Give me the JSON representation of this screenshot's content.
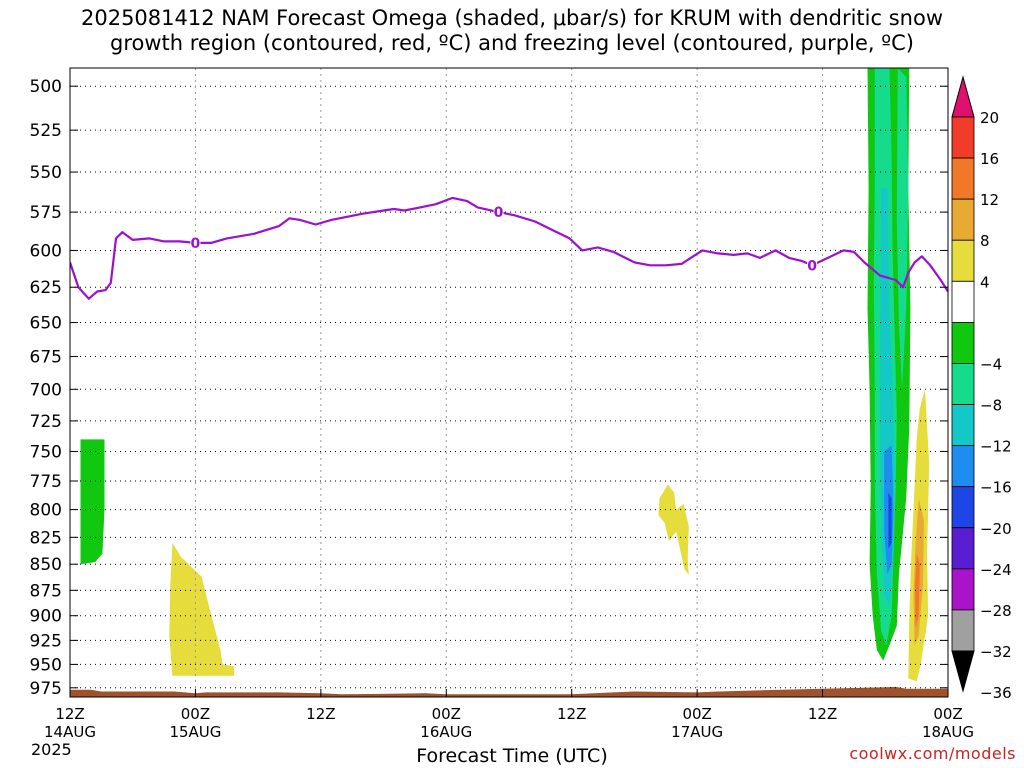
{
  "title": {
    "line1": "2025081412 NAM Forecast Omega (shaded, μbar/s) for KRUM with dendritic snow",
    "line2": "growth region (contoured, red, ºC) and freezing level (contoured, purple, ºC)"
  },
  "watermark": "coolwx.com/models",
  "chart_data": {
    "type": "heatmap",
    "title": "2025081412 NAM Forecast Omega (shaded, μbar/s) for KRUM with dendritic snow growth region (contoured, red, ºC) and freezing level (contoured, purple, ºC)",
    "xlabel": "Forecast Time (UTC)",
    "ylabel": "",
    "x_ticks": [
      {
        "h": 0,
        "line1": "12Z",
        "line2": "14AUG",
        "line3": "2025"
      },
      {
        "h": 12,
        "line1": "00Z",
        "line2": "15AUG"
      },
      {
        "h": 24,
        "line1": "12Z"
      },
      {
        "h": 36,
        "line1": "00Z",
        "line2": "16AUG"
      },
      {
        "h": 48,
        "line1": "12Z"
      },
      {
        "h": 60,
        "line1": "00Z",
        "line2": "17AUG"
      },
      {
        "h": 72,
        "line1": "12Z"
      },
      {
        "h": 84,
        "line1": "00Z",
        "line2": "18AUG"
      }
    ],
    "x_range_hours": [
      0,
      84
    ],
    "y_ticks": [
      500,
      525,
      550,
      575,
      600,
      625,
      650,
      675,
      700,
      725,
      750,
      775,
      800,
      825,
      850,
      875,
      900,
      925,
      950,
      975
    ],
    "y_range_hpa": [
      490,
      985
    ],
    "y_scale": "log-pressure",
    "grid": "dotted",
    "colorbar": {
      "labels": [
        "20",
        "16",
        "12",
        "8",
        "4",
        "−4",
        "−8",
        "−12",
        "−16",
        "−20",
        "−24",
        "−28",
        "−32",
        "−36"
      ],
      "bins": [
        {
          "from": 20,
          "to": 24,
          "color": "#e0106e"
        },
        {
          "from": 16,
          "to": 20,
          "color": "#f03c28"
        },
        {
          "from": 12,
          "to": 16,
          "color": "#f07828"
        },
        {
          "from": 8,
          "to": 12,
          "color": "#e8aa32"
        },
        {
          "from": 4,
          "to": 8,
          "color": "#e6dc3c"
        },
        {
          "from": -4,
          "to": 4,
          "color": "#ffffff"
        },
        {
          "from": -8,
          "to": -4,
          "color": "#10c810"
        },
        {
          "from": -12,
          "to": -8,
          "color": "#14dc8c"
        },
        {
          "from": -16,
          "to": -12,
          "color": "#14c8c8"
        },
        {
          "from": -20,
          "to": -16,
          "color": "#1e8cf0"
        },
        {
          "from": -24,
          "to": -20,
          "color": "#1e46e6"
        },
        {
          "from": -28,
          "to": -24,
          "color": "#5a1ed2"
        },
        {
          "from": -32,
          "to": -28,
          "color": "#aa14c8"
        },
        {
          "from": -36,
          "to": -32,
          "color": "#a0a0a0"
        },
        {
          "from": -40,
          "to": -36,
          "color": "#000000"
        }
      ]
    },
    "freezing_level": {
      "color": "#9b10d2",
      "label": "0",
      "label_at_hours": [
        12,
        41,
        71
      ],
      "points": [
        [
          0,
          608
        ],
        [
          0.8,
          625
        ],
        [
          1.8,
          633
        ],
        [
          2.6,
          628
        ],
        [
          3.4,
          627
        ],
        [
          3.9,
          622
        ],
        [
          4.4,
          592
        ],
        [
          5.0,
          588
        ],
        [
          6,
          593
        ],
        [
          7.6,
          592
        ],
        [
          9,
          594
        ],
        [
          10.5,
          594
        ],
        [
          12,
          595
        ],
        [
          13.5,
          595
        ],
        [
          15,
          592
        ],
        [
          17.6,
          589
        ],
        [
          20,
          584
        ],
        [
          21,
          579
        ],
        [
          22,
          580
        ],
        [
          23.5,
          583
        ],
        [
          25,
          580
        ],
        [
          26.5,
          578
        ],
        [
          28,
          576
        ],
        [
          30,
          574
        ],
        [
          31,
          573
        ],
        [
          32,
          574
        ],
        [
          33.5,
          572
        ],
        [
          35,
          570
        ],
        [
          36.6,
          566
        ],
        [
          38,
          568
        ],
        [
          39,
          572
        ],
        [
          41,
          575
        ],
        [
          42.5,
          577
        ],
        [
          44.5,
          581
        ],
        [
          46,
          586
        ],
        [
          47.8,
          592
        ],
        [
          49,
          600
        ],
        [
          50.5,
          598
        ],
        [
          52,
          601
        ],
        [
          54,
          608
        ],
        [
          55.5,
          610
        ],
        [
          57,
          610
        ],
        [
          58.5,
          609
        ],
        [
          60.5,
          600
        ],
        [
          62,
          602
        ],
        [
          63.5,
          603
        ],
        [
          64.8,
          602
        ],
        [
          66,
          605
        ],
        [
          67.5,
          600
        ],
        [
          68.8,
          605
        ],
        [
          70,
          607
        ],
        [
          71,
          610
        ],
        [
          72.5,
          605
        ],
        [
          74,
          600
        ],
        [
          75,
          601
        ],
        [
          76,
          608
        ],
        [
          77.5,
          617
        ],
        [
          79,
          620
        ],
        [
          79.7,
          625
        ],
        [
          80.2,
          615
        ],
        [
          80.8,
          608
        ],
        [
          81.5,
          604
        ],
        [
          82.3,
          610
        ],
        [
          83.3,
          620
        ],
        [
          84,
          628
        ]
      ]
    },
    "shaded_regions": [
      {
        "name": "early green (-4 to -8)",
        "value": -6,
        "hours": [
          1.0,
          3.3
        ],
        "pressure_hpa": [
          740,
          850
        ]
      },
      {
        "name": "yellow 15AUG (4 to 8)",
        "value": 6,
        "hours": [
          9.7,
          15.7
        ],
        "pressure_hpa": [
          828,
          962
        ]
      },
      {
        "name": "yellow 17AUG (4 to 8)",
        "value": 6,
        "hours": [
          56.3,
          59.3
        ],
        "pressure_hpa": [
          775,
          860
        ]
      },
      {
        "name": "strong ascent 17-18AUG",
        "min_value": -24,
        "hours": [
          76.4,
          80.4
        ],
        "pressure_hpa": [
          490,
          945
        ]
      },
      {
        "name": "descent 18AUG",
        "max_value": 16,
        "hours": [
          80.2,
          82.2
        ],
        "pressure_hpa": [
          700,
          968
        ]
      }
    ],
    "terrain": {
      "color": "#a0522d",
      "top_hpa_approx": [
        975,
        980
      ]
    }
  }
}
